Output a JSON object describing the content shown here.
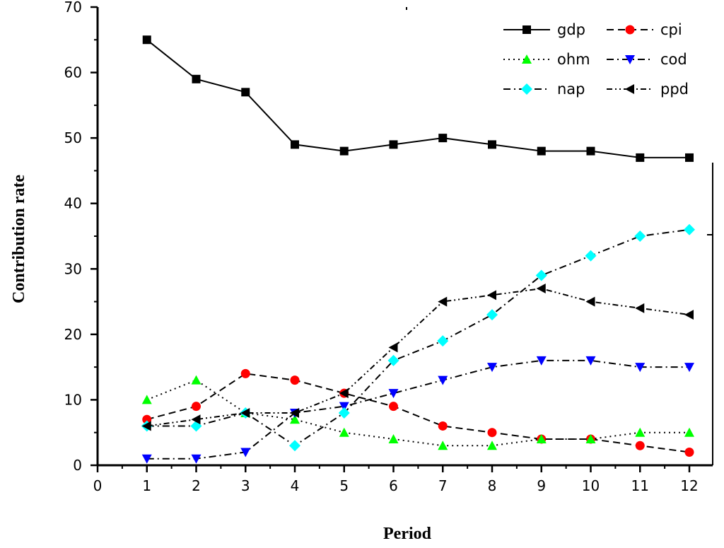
{
  "chart_data": {
    "type": "line",
    "xlabel": "Period",
    "ylabel": "Contribution rate",
    "xlim": [
      0,
      12
    ],
    "ylim": [
      0,
      70
    ],
    "xticks": [
      "0",
      "1",
      "2",
      "3",
      "4",
      "5",
      "6",
      "7",
      "8",
      "9",
      "10",
      "11",
      "12"
    ],
    "yticks": [
      "0",
      "10",
      "20",
      "30",
      "40",
      "50",
      "60",
      "70"
    ],
    "x": [
      1,
      2,
      3,
      4,
      5,
      6,
      7,
      8,
      9,
      10,
      11,
      12
    ],
    "legend_position": "top-right",
    "series": [
      {
        "name": "gdp",
        "color": "#000000",
        "marker": "square",
        "dash": "solid",
        "values": [
          65,
          59,
          57,
          49,
          48,
          49,
          50,
          49,
          48,
          48,
          47,
          47
        ]
      },
      {
        "name": "cpi",
        "color": "#ff0000",
        "marker": "circle",
        "dash": "dash",
        "values": [
          7,
          9,
          14,
          13,
          11,
          9,
          6,
          5,
          4,
          4,
          3,
          2
        ]
      },
      {
        "name": "ohm",
        "color": "#00ff00",
        "marker": "triangle-up",
        "dash": "dot",
        "values": [
          10,
          13,
          8,
          7,
          5,
          4,
          3,
          3,
          4,
          4,
          5,
          5
        ]
      },
      {
        "name": "cod",
        "color": "#0000ff",
        "marker": "triangle-down",
        "dash": "dashdot",
        "values": [
          1,
          1,
          2,
          8,
          9,
          11,
          13,
          15,
          16,
          16,
          15,
          15
        ]
      },
      {
        "name": "nap",
        "color": "#00ffff",
        "marker": "diamond",
        "dash": "dashdot",
        "values": [
          6,
          6,
          8,
          3,
          8,
          16,
          19,
          23,
          29,
          32,
          35,
          36
        ]
      },
      {
        "name": "ppd",
        "color": "#000000",
        "marker": "triangle-left",
        "dash": "dashdotdot",
        "values": [
          6,
          7,
          8,
          8,
          11,
          18,
          25,
          26,
          27,
          25,
          24,
          23
        ]
      }
    ]
  }
}
